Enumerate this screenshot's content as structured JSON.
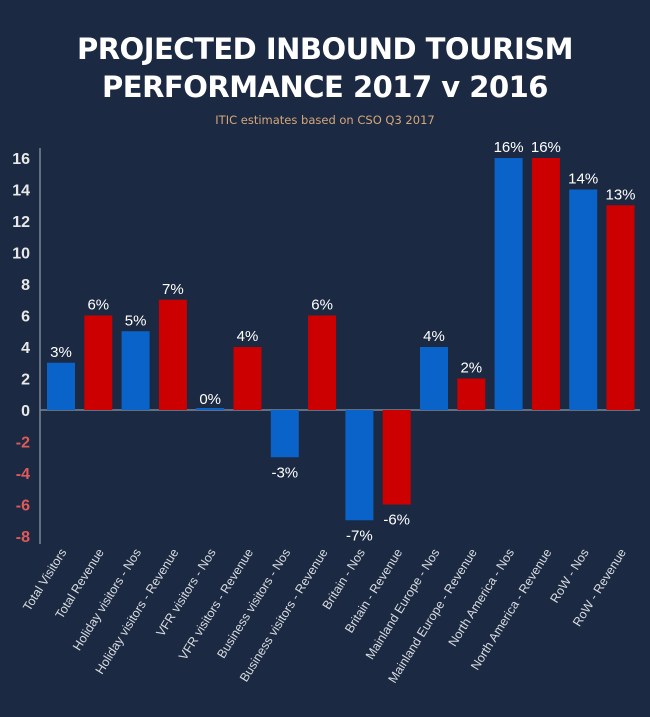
{
  "chart_data": {
    "type": "bar",
    "title": [
      "PROJECTED INBOUND TOURISM",
      "PERFORMANCE 2017 v 2016"
    ],
    "subtitle": "ITIC estimates based on CSO Q3 2017",
    "xlabel": "",
    "ylabel": "",
    "ylim": [
      -8,
      16
    ],
    "yticks": [
      "16",
      "14",
      "12",
      "10",
      "8",
      "6",
      "4",
      "2",
      "0",
      "-2",
      "-4",
      "-6",
      "-8"
    ],
    "ytick_values": [
      16,
      14,
      12,
      10,
      8,
      6,
      4,
      2,
      0,
      -2,
      -4,
      -6,
      -8
    ],
    "grid": false,
    "categories": [
      "Total Visitors",
      "Total Revenue",
      "Holiday visitors - Nos",
      "Holiday visitors - Revenue",
      "VFR visitors - Nos",
      "VFR visitors - Revenue",
      "Business visitors - Nos",
      "Business visitors - Revenue",
      "Britain - Nos",
      "Britain - Revenue",
      "Mainland Europe - Nos",
      "Mainland Europe - Revenue",
      "North America - Nos",
      "North America - Revenue",
      "RoW - Nos",
      "RoW - Revenue"
    ],
    "values": [
      3,
      6,
      5,
      7,
      0,
      4,
      -3,
      6,
      -7,
      -6,
      4,
      2,
      16,
      16,
      14,
      13
    ],
    "data_labels": [
      "3%",
      "6%",
      "5%",
      "7%",
      "0%",
      "4%",
      "-3%",
      "6%",
      "-7%",
      "-6%",
      "4%",
      "2%",
      "16%",
      "16%",
      "14%",
      "13%"
    ],
    "series_colors": {
      "nos": "#0a63c9",
      "revenue": "#cc0000"
    },
    "axis_colors": {
      "positive": "#e8e8e8",
      "negative": "#e05a5a"
    }
  }
}
